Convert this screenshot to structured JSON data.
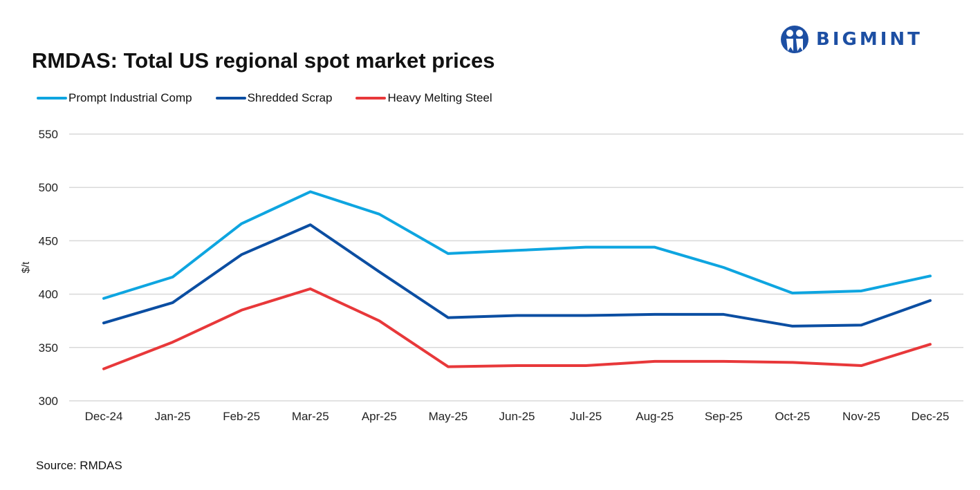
{
  "title": "RMDAS: Total US regional spot market prices",
  "logo": {
    "text": "BIGMINT",
    "color": "#1d4fa3"
  },
  "source": "Source: RMDAS",
  "chart_data": {
    "type": "line",
    "title": "RMDAS: Total US regional spot market prices",
    "xlabel": "",
    "ylabel": "$/t",
    "ylim": [
      300,
      550
    ],
    "yticks": [
      300,
      350,
      400,
      450,
      500,
      550
    ],
    "grid": true,
    "legend_position": "top-left",
    "categories": [
      "Dec-24",
      "Jan-25",
      "Feb-25",
      "Mar-25",
      "Apr-25",
      "May-25",
      "Jun-25",
      "Jul-25",
      "Aug-25",
      "Sep-25",
      "Oct-25",
      "Nov-25",
      "Dec-25"
    ],
    "series": [
      {
        "name": "Prompt Industrial Comp",
        "color": "#0ea5e0",
        "values": [
          396,
          416,
          466,
          496,
          475,
          438,
          441,
          444,
          444,
          425,
          401,
          403,
          417
        ]
      },
      {
        "name": "Shredded Scrap",
        "color": "#0b4ea2",
        "values": [
          373,
          392,
          437,
          465,
          421,
          378,
          380,
          380,
          381,
          381,
          370,
          371,
          394
        ]
      },
      {
        "name": "Heavy Melting Steel",
        "color": "#e8383a",
        "values": [
          330,
          355,
          385,
          405,
          375,
          332,
          333,
          333,
          337,
          337,
          336,
          333,
          353
        ]
      }
    ]
  }
}
